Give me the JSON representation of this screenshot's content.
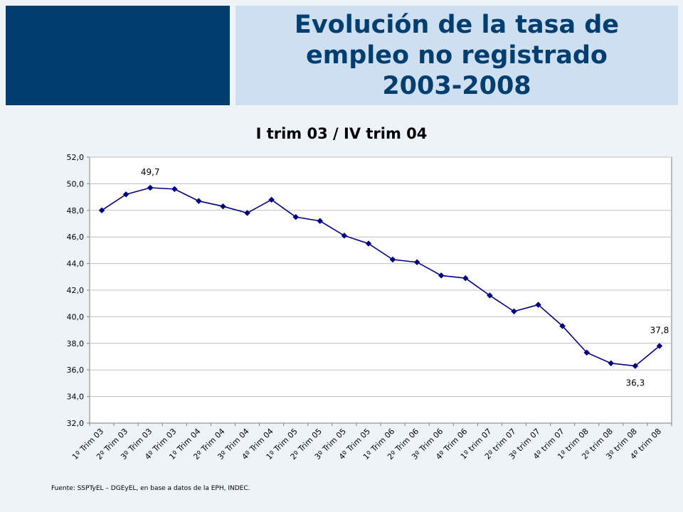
{
  "header": {
    "title": "Evolución de la tasa de\nempleo no registrado\n2003-2008"
  },
  "colors": {
    "banner_dark": "#003e70",
    "banner_light": "#cddff0",
    "series_line": "#000080",
    "background": "#eef3f8"
  },
  "chart_data": {
    "type": "line",
    "title": "I trim 03 / IV trim 04",
    "xlabel": "",
    "ylabel": "",
    "ylim": [
      32,
      52
    ],
    "y_ticks": [
      "32,0",
      "34,0",
      "36,0",
      "38,0",
      "40,0",
      "42,0",
      "44,0",
      "46,0",
      "48,0",
      "50,0",
      "52,0"
    ],
    "grid": "horizontal",
    "categories": [
      "1º Trim 03",
      "2º Trim 03",
      "3º Trim 03",
      "4º Trim 03",
      "1º Trim 04",
      "2º Trim 04",
      "3º Trim 04",
      "4º Trim 04",
      "1º Trim 05",
      "2º Trim 05",
      "3º Trim 05",
      "4º Trim 05",
      "1º Trim 06",
      "2º Trim 06",
      "3º Trim 06",
      "4º Trim 06",
      "1º trim 07",
      "2º trim 07",
      "3º trim 07",
      "4º trim 07",
      "1º trim 08",
      "2º trim 08",
      "3º trim 08",
      "4º trim 08"
    ],
    "series": [
      {
        "values": [
          48.0,
          49.2,
          49.7,
          49.6,
          48.7,
          48.3,
          47.8,
          48.8,
          47.5,
          47.2,
          46.1,
          45.5,
          44.3,
          44.1,
          43.1,
          42.9,
          41.6,
          40.4,
          40.9,
          39.3,
          37.3,
          36.5,
          36.3,
          37.8
        ]
      }
    ],
    "annotations": [
      {
        "index": 2,
        "text": "49,7",
        "position": "above"
      },
      {
        "index": 22,
        "text": "36,3",
        "position": "below"
      },
      {
        "index": 23,
        "text": "37,8",
        "position": "above"
      }
    ]
  },
  "footnote": "Fuente: SSPTyEL – DGEyEL, en base a datos de la EPH, INDEC."
}
